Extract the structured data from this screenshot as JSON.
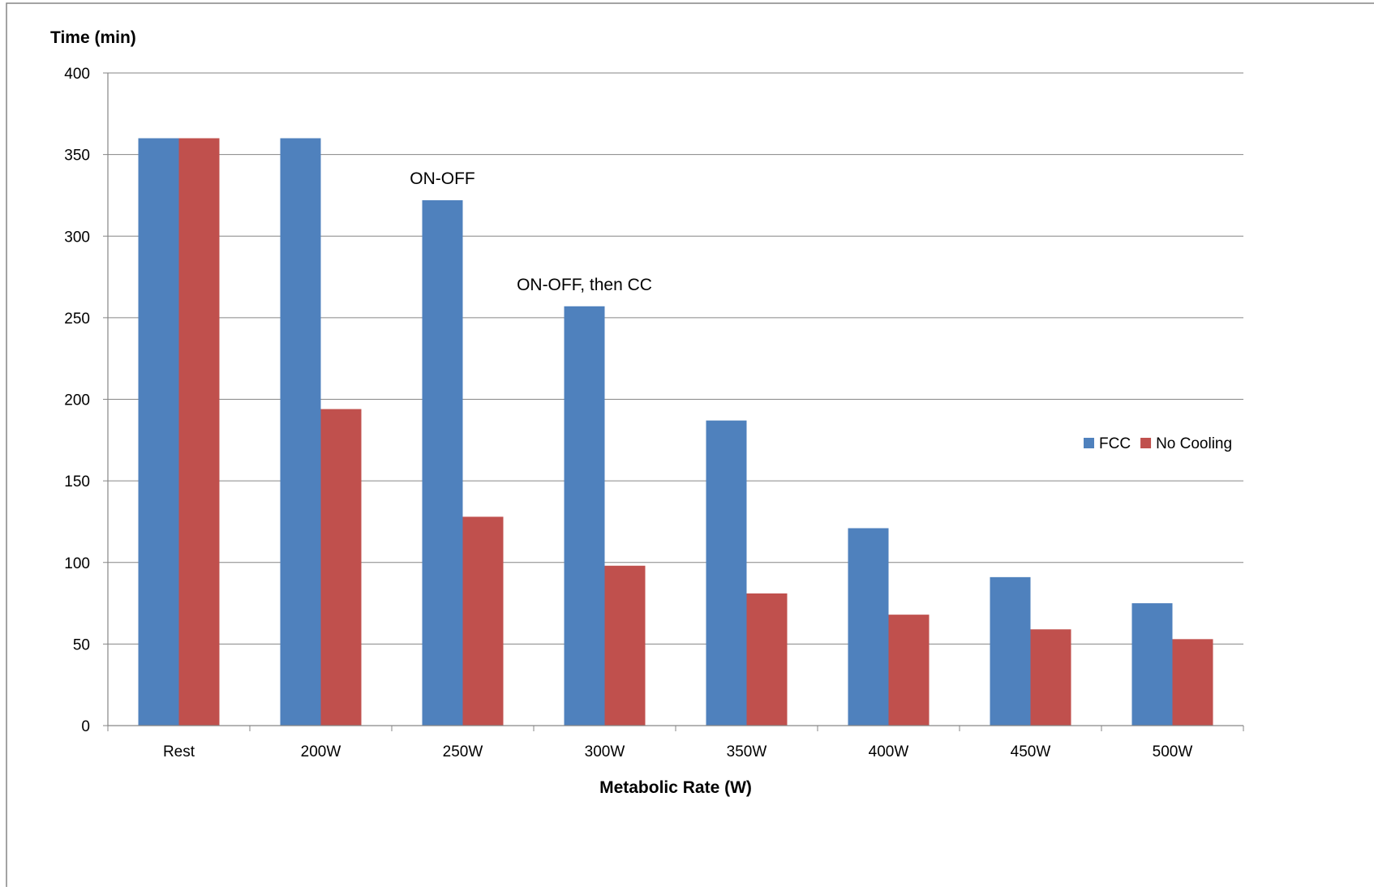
{
  "chart_data": {
    "type": "bar",
    "title": "",
    "ylabel": "Time (min)",
    "xlabel": "Metabolic Rate (W)",
    "ylim": [
      0,
      400
    ],
    "ytick_step": 50,
    "yticks": [
      "0",
      "50",
      "100",
      "150",
      "200",
      "250",
      "300",
      "350",
      "400"
    ],
    "grid": true,
    "legend_position": "right",
    "categories": [
      "Rest",
      "200W",
      "250W",
      "300W",
      "350W",
      "400W",
      "450W",
      "500W"
    ],
    "series": [
      {
        "name": "FCC",
        "color": "#4F81BD",
        "values": [
          360,
          360,
          322,
          257,
          187,
          121,
          91,
          75
        ]
      },
      {
        "name": "No Cooling",
        "color": "#C0504D",
        "values": [
          360,
          194,
          128,
          98,
          81,
          68,
          59,
          53
        ]
      }
    ],
    "annotations": [
      {
        "text": "ON-OFF",
        "category": "250W",
        "series": "FCC"
      },
      {
        "text": "ON-OFF, then CC",
        "category": "300W",
        "series": "FCC"
      }
    ]
  }
}
